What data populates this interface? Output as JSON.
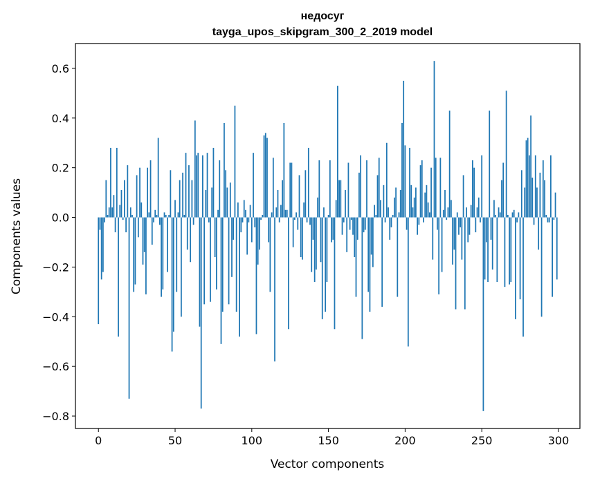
{
  "chart_data": {
    "type": "bar",
    "title": "недосуг",
    "subtitle": "tayga_upos_skipgram_300_2_2019 model",
    "xlabel": "Vector components",
    "ylabel": "Components values",
    "xlim": [
      -15,
      314
    ],
    "ylim": [
      -0.85,
      0.7
    ],
    "xticks": [
      0,
      50,
      100,
      150,
      200,
      250,
      300
    ],
    "yticks": [
      -0.8,
      -0.6,
      -0.4,
      -0.2,
      0.0,
      0.2,
      0.4,
      0.6
    ],
    "ytick_labels": [
      "−0.8",
      "−0.6",
      "−0.4",
      "−0.2",
      "0.0",
      "0.2",
      "0.4",
      "0.6"
    ],
    "bar_color": "#1f77b4",
    "grid": false,
    "legend": "none",
    "values": [
      -0.43,
      -0.05,
      -0.25,
      -0.22,
      -0.02,
      0.15,
      0.01,
      0.04,
      0.28,
      0.04,
      0.09,
      -0.06,
      0.28,
      -0.48,
      0.05,
      0.11,
      -0.01,
      0.15,
      -0.06,
      0.21,
      -0.73,
      0.04,
      0.01,
      -0.3,
      -0.27,
      0.17,
      -0.08,
      0.2,
      0.06,
      -0.19,
      -0.14,
      -0.31,
      0.2,
      0.02,
      0.23,
      -0.11,
      -0.02,
      0.03,
      0.01,
      0.32,
      -0.03,
      -0.32,
      -0.29,
      0.02,
      0.01,
      -0.22,
      0.01,
      0.19,
      -0.54,
      -0.46,
      0.07,
      -0.3,
      0.02,
      0.15,
      -0.4,
      0.18,
      0.01,
      0.26,
      -0.13,
      0.21,
      -0.18,
      0.15,
      -0.03,
      0.39,
      0.25,
      0.26,
      -0.44,
      -0.77,
      0.25,
      -0.35,
      0.11,
      0.26,
      -0.02,
      -0.34,
      0.12,
      0.28,
      -0.16,
      -0.29,
      0.03,
      0.23,
      -0.51,
      -0.38,
      0.38,
      0.19,
      0.12,
      -0.35,
      0.14,
      -0.24,
      -0.09,
      0.45,
      -0.38,
      0.06,
      -0.48,
      -0.06,
      -0.02,
      0.07,
      0.03,
      -0.15,
      -0.02,
      0.05,
      -0.1,
      0.26,
      -0.04,
      -0.47,
      -0.19,
      -0.13,
      -0.01,
      0.01,
      0.33,
      0.34,
      0.32,
      -0.1,
      -0.3,
      0.02,
      0.24,
      -0.58,
      0.04,
      0.11,
      -0.02,
      0.05,
      0.15,
      0.38,
      0.03,
      0.03,
      -0.45,
      0.22,
      0.22,
      -0.12,
      -0.01,
      0.02,
      -0.05,
      0.17,
      -0.16,
      -0.17,
      0.06,
      0.19,
      -0.02,
      0.28,
      -0.03,
      -0.22,
      -0.09,
      -0.26,
      -0.21,
      0.08,
      0.23,
      -0.18,
      -0.41,
      0.04,
      -0.38,
      -0.26,
      0.01,
      0.23,
      -0.1,
      -0.09,
      -0.45,
      0.07,
      0.53,
      0.15,
      0.15,
      -0.07,
      -0.02,
      0.11,
      -0.14,
      0.22,
      -0.05,
      -0.01,
      -0.07,
      -0.16,
      -0.32,
      -0.09,
      0.18,
      0.25,
      -0.49,
      -0.06,
      -0.05,
      0.23,
      -0.3,
      -0.38,
      -0.15,
      -0.2,
      0.05,
      0.01,
      0.17,
      0.24,
      0.07,
      -0.36,
      0.13,
      -0.02,
      0.3,
      0.04,
      -0.09,
      -0.04,
      0.01,
      0.08,
      0.12,
      -0.32,
      0.02,
      0.11,
      0.38,
      0.55,
      0.29,
      -0.05,
      -0.52,
      0.28,
      0.13,
      0.04,
      0.08,
      0.12,
      -0.07,
      -0.03,
      0.21,
      0.23,
      -0.02,
      0.1,
      0.13,
      0.06,
      0.02,
      0.2,
      -0.17,
      0.63,
      0.24,
      -0.05,
      -0.31,
      0.24,
      -0.22,
      0.03,
      0.11,
      -0.01,
      0.04,
      0.43,
      0.07,
      -0.19,
      -0.13,
      -0.37,
      0.02,
      -0.07,
      -0.04,
      -0.17,
      0.17,
      -0.37,
      0.04,
      -0.1,
      -0.07,
      0.05,
      0.23,
      0.2,
      -0.06,
      0.04,
      0.08,
      -0.02,
      0.25,
      -0.78,
      -0.25,
      -0.1,
      -0.26,
      0.43,
      -0.09,
      -0.21,
      0.07,
      0.01,
      -0.26,
      0.04,
      0.02,
      0.15,
      0.22,
      -0.28,
      0.51,
      0.01,
      -0.27,
      -0.26,
      0.02,
      0.03,
      -0.41,
      -0.02,
      0.02,
      -0.33,
      0.19,
      -0.48,
      0.12,
      0.31,
      0.32,
      0.25,
      0.41,
      0.16,
      -0.03,
      0.25,
      0.12,
      -0.13,
      0.18,
      -0.4,
      0.23,
      0.15,
      0.01,
      -0.02,
      -0.02,
      0.25,
      -0.32,
      -0.01,
      0.1,
      -0.25
    ]
  }
}
